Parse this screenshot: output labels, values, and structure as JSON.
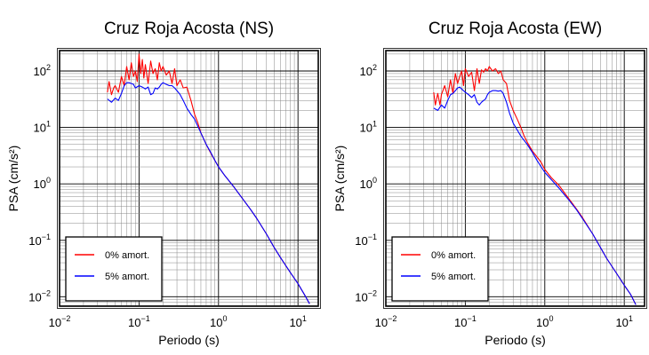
{
  "chart_data": [
    {
      "type": "line",
      "title": "Cruz Roja Acosta (NS)",
      "xlabel": "Periodo (s)",
      "ylabel": "PSA (cm/s²)",
      "x_scale": "log",
      "y_scale": "log",
      "xlim": [
        0.01,
        18
      ],
      "ylim": [
        0.0068,
        230
      ],
      "x_ticks": [
        {
          "value": 0.01,
          "base": "10",
          "exp": "−2"
        },
        {
          "value": 0.1,
          "base": "10",
          "exp": "−1"
        },
        {
          "value": 1,
          "base": "10",
          "exp": "0"
        },
        {
          "value": 10,
          "base": "10",
          "exp": "1"
        }
      ],
      "y_ticks": [
        {
          "value": 0.01,
          "base": "10",
          "exp": "−2"
        },
        {
          "value": 0.1,
          "base": "10",
          "exp": "−1"
        },
        {
          "value": 1,
          "base": "10",
          "exp": "0"
        },
        {
          "value": 10,
          "base": "10",
          "exp": "1"
        },
        {
          "value": 100,
          "base": "10",
          "exp": "2"
        }
      ],
      "grid": true,
      "legend_position": "bottom-left",
      "series": [
        {
          "name": "0% amort.",
          "color": "#ff0000",
          "x": [
            0.04,
            0.042,
            0.045,
            0.048,
            0.05,
            0.055,
            0.06,
            0.065,
            0.07,
            0.075,
            0.08,
            0.085,
            0.09,
            0.095,
            0.1,
            0.105,
            0.11,
            0.115,
            0.12,
            0.13,
            0.14,
            0.15,
            0.16,
            0.17,
            0.18,
            0.19,
            0.2,
            0.22,
            0.24,
            0.26,
            0.28,
            0.3,
            0.33,
            0.36,
            0.4,
            0.45,
            0.5,
            0.55,
            0.6,
            0.7,
            0.8,
            0.9,
            1.0,
            1.2,
            1.5,
            2,
            2.5,
            3,
            4,
            5,
            6,
            8,
            10,
            12,
            14
          ],
          "y": [
            42,
            65,
            38,
            50,
            55,
            42,
            80,
            55,
            120,
            70,
            140,
            80,
            100,
            65,
            200,
            90,
            160,
            75,
            130,
            60,
            150,
            90,
            110,
            70,
            140,
            100,
            120,
            85,
            100,
            60,
            110,
            55,
            70,
            50,
            52,
            30,
            17,
            12,
            8,
            5,
            3.5,
            2.6,
            2.0,
            1.4,
            0.95,
            0.55,
            0.36,
            0.25,
            0.13,
            0.075,
            0.05,
            0.027,
            0.017,
            0.011,
            0.0075
          ]
        },
        {
          "name": "5% amort.",
          "color": "#0000ff",
          "x": [
            0.04,
            0.045,
            0.05,
            0.055,
            0.06,
            0.065,
            0.07,
            0.075,
            0.08,
            0.085,
            0.09,
            0.1,
            0.11,
            0.12,
            0.13,
            0.14,
            0.15,
            0.16,
            0.17,
            0.18,
            0.19,
            0.2,
            0.22,
            0.24,
            0.26,
            0.28,
            0.3,
            0.33,
            0.36,
            0.4,
            0.45,
            0.5,
            0.6,
            0.7,
            0.8,
            0.9,
            1.0,
            1.2,
            1.5,
            2,
            2.5,
            3,
            4,
            5,
            6,
            8,
            10,
            12,
            14
          ],
          "y": [
            32,
            28,
            33,
            30,
            40,
            55,
            62,
            62,
            60,
            58,
            50,
            55,
            52,
            48,
            52,
            38,
            40,
            50,
            48,
            52,
            58,
            62,
            58,
            55,
            55,
            50,
            45,
            38,
            30,
            22,
            17,
            14,
            8,
            5,
            3.6,
            2.6,
            2.0,
            1.4,
            0.95,
            0.55,
            0.36,
            0.25,
            0.13,
            0.075,
            0.05,
            0.027,
            0.017,
            0.011,
            0.0075
          ]
        }
      ]
    },
    {
      "type": "line",
      "title": "Cruz Roja Acosta (EW)",
      "xlabel": "Periodo (s)",
      "ylabel": "PSA (cm/s²)",
      "x_scale": "log",
      "y_scale": "log",
      "xlim": [
        0.01,
        18
      ],
      "ylim": [
        0.0068,
        230
      ],
      "x_ticks": [
        {
          "value": 0.01,
          "base": "10",
          "exp": "−2"
        },
        {
          "value": 0.1,
          "base": "10",
          "exp": "−1"
        },
        {
          "value": 1,
          "base": "10",
          "exp": "0"
        },
        {
          "value": 10,
          "base": "10",
          "exp": "1"
        }
      ],
      "y_ticks": [
        {
          "value": 0.01,
          "base": "10",
          "exp": "−2"
        },
        {
          "value": 0.1,
          "base": "10",
          "exp": "−1"
        },
        {
          "value": 1,
          "base": "10",
          "exp": "0"
        },
        {
          "value": 10,
          "base": "10",
          "exp": "1"
        },
        {
          "value": 100,
          "base": "10",
          "exp": "2"
        }
      ],
      "grid": true,
      "legend_position": "bottom-left",
      "series": [
        {
          "name": "0% amort.",
          "color": "#ff0000",
          "x": [
            0.04,
            0.042,
            0.045,
            0.048,
            0.05,
            0.055,
            0.06,
            0.065,
            0.07,
            0.075,
            0.08,
            0.085,
            0.09,
            0.095,
            0.1,
            0.11,
            0.12,
            0.13,
            0.14,
            0.15,
            0.16,
            0.17,
            0.18,
            0.19,
            0.2,
            0.22,
            0.24,
            0.26,
            0.28,
            0.3,
            0.33,
            0.36,
            0.4,
            0.45,
            0.5,
            0.55,
            0.6,
            0.7,
            0.8,
            0.9,
            1.0,
            1.2,
            1.5,
            2,
            2.5,
            3,
            4,
            5,
            6,
            8,
            10,
            12,
            14
          ],
          "y": [
            42,
            25,
            40,
            25,
            38,
            55,
            35,
            70,
            40,
            90,
            60,
            80,
            100,
            55,
            110,
            80,
            95,
            45,
            110,
            60,
            105,
            95,
            110,
            100,
            120,
            100,
            110,
            90,
            100,
            70,
            60,
            30,
            20,
            14,
            10,
            7,
            5.5,
            3.8,
            3.0,
            2.4,
            1.8,
            1.3,
            0.95,
            0.55,
            0.36,
            0.25,
            0.13,
            0.075,
            0.048,
            0.026,
            0.016,
            0.011,
            0.0072
          ]
        },
        {
          "name": "5% amort.",
          "color": "#0000ff",
          "x": [
            0.04,
            0.045,
            0.05,
            0.055,
            0.06,
            0.065,
            0.07,
            0.075,
            0.08,
            0.085,
            0.09,
            0.1,
            0.11,
            0.12,
            0.13,
            0.14,
            0.15,
            0.16,
            0.17,
            0.18,
            0.19,
            0.2,
            0.22,
            0.24,
            0.26,
            0.28,
            0.3,
            0.33,
            0.36,
            0.4,
            0.45,
            0.5,
            0.6,
            0.7,
            0.8,
            0.9,
            1.0,
            1.2,
            1.5,
            2,
            2.5,
            3,
            4,
            5,
            6,
            8,
            10,
            12,
            14
          ],
          "y": [
            22,
            20,
            25,
            22,
            30,
            38,
            40,
            45,
            50,
            52,
            48,
            42,
            38,
            34,
            38,
            28,
            25,
            28,
            30,
            32,
            38,
            42,
            45,
            45,
            44,
            45,
            40,
            28,
            18,
            12,
            9,
            7,
            5,
            3.6,
            2.6,
            2.0,
            1.6,
            1.2,
            0.85,
            0.52,
            0.35,
            0.24,
            0.13,
            0.075,
            0.048,
            0.026,
            0.016,
            0.011,
            0.0072
          ]
        }
      ]
    }
  ]
}
